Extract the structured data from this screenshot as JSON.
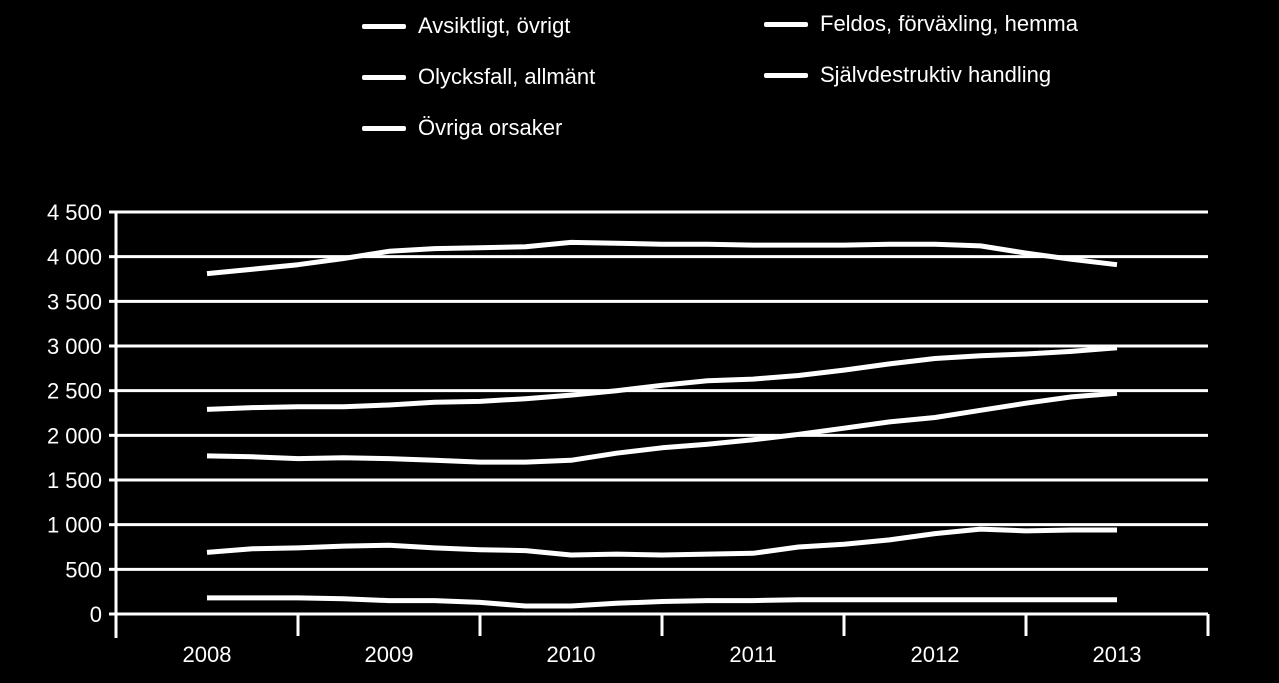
{
  "chart_data": {
    "type": "line",
    "title": "",
    "xlabel": "",
    "ylabel": "",
    "ylim": [
      0,
      4500
    ],
    "yticks": [
      0,
      500,
      1000,
      1500,
      2000,
      2500,
      3000,
      3500,
      4000,
      4500
    ],
    "ytick_labels": [
      "0",
      "500",
      "1 000",
      "1 500",
      "2 000",
      "2 500",
      "3 000",
      "3 500",
      "4 000",
      "4 500"
    ],
    "xlim": [
      2007.5,
      2013.5
    ],
    "xtick_labels": [
      "2008",
      "2009",
      "2010",
      "2011",
      "2012",
      "2013"
    ],
    "xtick_positions": [
      2008,
      2009,
      2010,
      2011,
      2012,
      2013
    ],
    "legend_position": "top",
    "grid": true,
    "series": [
      {
        "name": "Avsiktligt, övrigt",
        "x": [
          2008.0,
          2008.25,
          2008.5,
          2008.75,
          2009.0,
          2009.25,
          2009.5,
          2009.75,
          2010.0,
          2010.25,
          2010.5,
          2010.75,
          2011.0,
          2011.25,
          2011.5,
          2011.75,
          2012.0,
          2012.25,
          2012.5,
          2012.75,
          2013.0
        ],
        "values": [
          3810,
          3860,
          3910,
          3980,
          4060,
          4090,
          4100,
          4110,
          4160,
          4150,
          4140,
          4140,
          4130,
          4130,
          4130,
          4140,
          4140,
          4120,
          4040,
          3970,
          3910
        ]
      },
      {
        "name": "Feldos, förväxling, hemma",
        "x": [
          2008.0,
          2008.25,
          2008.5,
          2008.75,
          2009.0,
          2009.25,
          2009.5,
          2009.75,
          2010.0,
          2010.25,
          2010.5,
          2010.75,
          2011.0,
          2011.25,
          2011.5,
          2011.75,
          2012.0,
          2012.25,
          2012.5,
          2012.75,
          2013.0
        ],
        "values": [
          2290,
          2310,
          2320,
          2320,
          2340,
          2370,
          2380,
          2410,
          2450,
          2500,
          2560,
          2610,
          2630,
          2670,
          2730,
          2800,
          2860,
          2890,
          2910,
          2940,
          2980
        ]
      },
      {
        "name": "Olycksfall, allmänt",
        "x": [
          2008.0,
          2008.25,
          2008.5,
          2008.75,
          2009.0,
          2009.25,
          2009.5,
          2009.75,
          2010.0,
          2010.25,
          2010.5,
          2010.75,
          2011.0,
          2011.25,
          2011.5,
          2011.75,
          2012.0,
          2012.25,
          2012.5,
          2012.75,
          2013.0
        ],
        "values": [
          1770,
          1760,
          1740,
          1750,
          1740,
          1720,
          1700,
          1700,
          1720,
          1800,
          1860,
          1900,
          1950,
          2010,
          2080,
          2150,
          2200,
          2280,
          2360,
          2430,
          2470
        ]
      },
      {
        "name": "Självdestruktiv handling",
        "x": [
          2008.0,
          2008.25,
          2008.5,
          2008.75,
          2009.0,
          2009.25,
          2009.5,
          2009.75,
          2010.0,
          2010.25,
          2010.5,
          2010.75,
          2011.0,
          2011.25,
          2011.5,
          2011.75,
          2012.0,
          2012.25,
          2012.5,
          2012.75,
          2013.0
        ],
        "values": [
          690,
          730,
          740,
          760,
          770,
          740,
          720,
          710,
          660,
          670,
          660,
          670,
          680,
          750,
          780,
          830,
          900,
          950,
          930,
          940,
          940
        ]
      },
      {
        "name": "Övriga orsaker",
        "x": [
          2008.0,
          2008.25,
          2008.5,
          2008.75,
          2009.0,
          2009.25,
          2009.5,
          2009.75,
          2010.0,
          2010.25,
          2010.5,
          2010.75,
          2011.0,
          2011.25,
          2011.5,
          2011.75,
          2012.0,
          2012.25,
          2012.5,
          2012.75,
          2013.0
        ],
        "values": [
          180,
          180,
          180,
          170,
          150,
          150,
          130,
          90,
          90,
          120,
          140,
          150,
          150,
          160,
          160,
          160,
          160,
          160,
          160,
          160,
          160
        ]
      }
    ]
  },
  "legend": [
    {
      "label": "Avsiktligt, övrigt"
    },
    {
      "label": "Feldos, förväxling, hemma"
    },
    {
      "label": "Olycksfall, allmänt"
    },
    {
      "label": "Självdestruktiv handling"
    },
    {
      "label": "Övriga orsaker"
    }
  ],
  "colors": {
    "background": "#000000",
    "foreground": "#ffffff"
  }
}
